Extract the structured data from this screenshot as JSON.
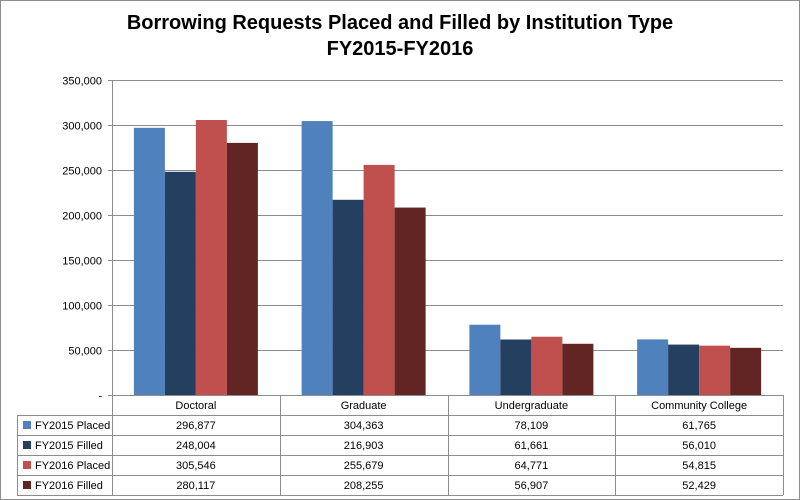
{
  "chart_data": {
    "type": "bar",
    "title": "Borrowing Requests Placed and Filled by Institution Type",
    "subtitle": "FY2015-FY2016",
    "categories": [
      "Doctoral",
      "Graduate",
      "Undergraduate",
      "Community College"
    ],
    "series": [
      {
        "name": "FY2015 Placed",
        "values": [
          296877,
          304363,
          78109,
          61765
        ],
        "color": "#4f81bd",
        "labels": [
          "296,877",
          "304,363",
          "78,109",
          "61,765"
        ]
      },
      {
        "name": "FY2015 Filled",
        "values": [
          248004,
          216903,
          61661,
          56010
        ],
        "color": "#243f60",
        "labels": [
          "248,004",
          "216,903",
          "61,661",
          "56,010"
        ]
      },
      {
        "name": "FY2016 Placed",
        "values": [
          305546,
          255679,
          64771,
          54815
        ],
        "color": "#c0504d",
        "labels": [
          "305,546",
          "255,679",
          "64,771",
          "54,815"
        ]
      },
      {
        "name": "FY2016 Filled",
        "values": [
          280117,
          208255,
          56907,
          52429
        ],
        "color": "#632523",
        "labels": [
          "280,117",
          "208,255",
          "56,907",
          "52,429"
        ]
      }
    ],
    "ylim": [
      0,
      350000
    ],
    "yticks": [
      0,
      50000,
      100000,
      150000,
      200000,
      250000,
      300000,
      350000
    ],
    "ytick_labels": [
      "-",
      "50,000",
      "100,000",
      "150,000",
      "200,000",
      "250,000",
      "300,000",
      "350,000"
    ],
    "grid": true,
    "legend": "data-table"
  }
}
